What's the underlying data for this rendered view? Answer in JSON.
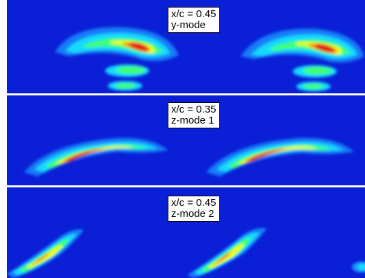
{
  "panels": [
    {
      "position": "x/c = 0.45",
      "mode": "y-mode"
    },
    {
      "position": "x/c = 0.35",
      "mode": "z-mode 1"
    },
    {
      "position": "x/c = 0.45",
      "mode": "z-mode 2"
    }
  ],
  "colormap": {
    "background": "#0a1fd6",
    "low": "#1a8cff",
    "mid_low": "#19d9ff",
    "mid": "#3dff7a",
    "mid_high": "#e6ff1a",
    "high": "#ff9a00",
    "peak": "#e8151e"
  }
}
